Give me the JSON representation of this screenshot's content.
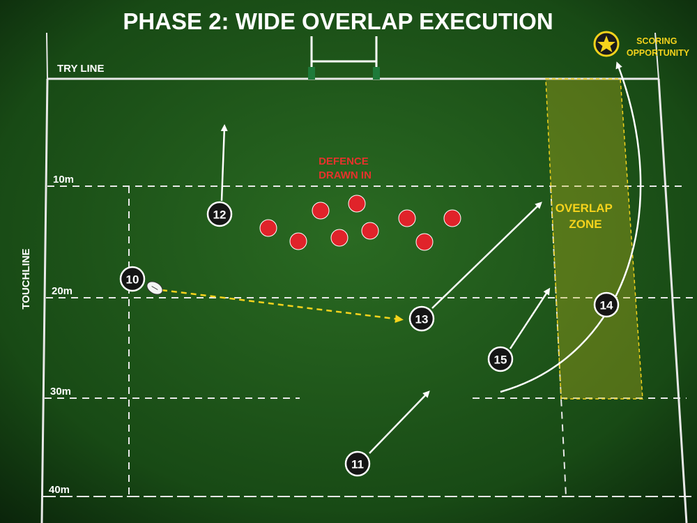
{
  "header": {
    "title": "PHASE 2: WIDE OVERLAP EXECUTION"
  },
  "field": {
    "try_line": "TRY LINE",
    "touchline": "TOUCHLINE",
    "distance_lines": [
      "10m",
      "20m",
      "30m",
      "40m"
    ]
  },
  "players": [
    "12",
    "10",
    "13",
    "15",
    "14",
    "11"
  ],
  "annotations": {
    "defence": {
      "lines": [
        "DEFENCE",
        "DRAWN IN"
      ]
    },
    "overlap": {
      "lines": [
        "OVERLAP",
        "ZONE"
      ]
    },
    "scoring": {
      "lines": [
        "SCORING",
        "OPPORTUNITY"
      ]
    }
  }
}
